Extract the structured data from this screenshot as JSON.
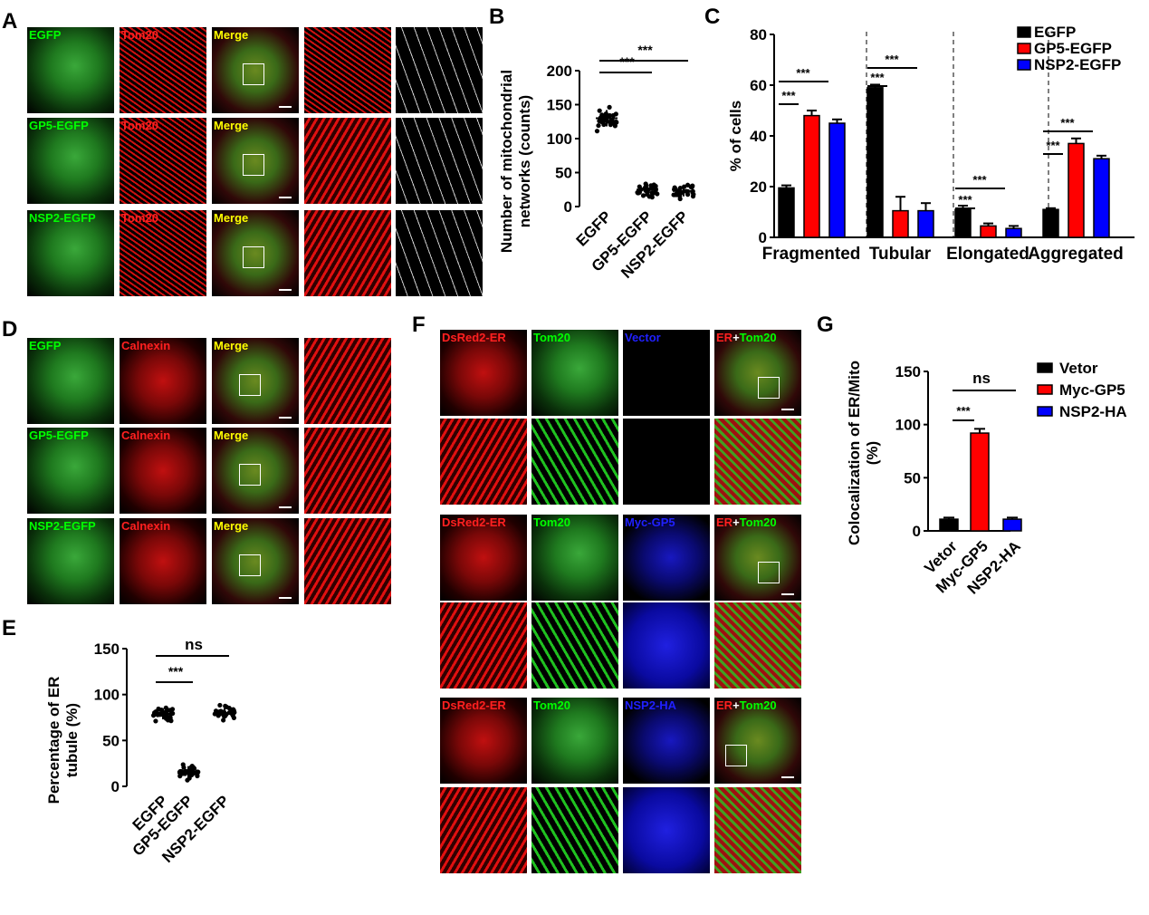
{
  "panel_letters": {
    "A": "A",
    "B": "B",
    "C": "C",
    "D": "D",
    "E": "E",
    "F": "F",
    "G": "G"
  },
  "panel_A": {
    "rows": [
      {
        "protein": "EGFP",
        "stain": "Tom20",
        "merge": "Merge"
      },
      {
        "protein": "GP5-EGFP",
        "stain": "Tom20",
        "merge": "Merge"
      },
      {
        "protein": "NSP2-EGFP",
        "stain": "Tom20",
        "merge": "Merge"
      }
    ]
  },
  "panel_D": {
    "rows": [
      {
        "protein": "EGFP",
        "stain": "Calnexin",
        "merge": "Merge"
      },
      {
        "protein": "GP5-EGFP",
        "stain": "Calnexin",
        "merge": "Merge"
      },
      {
        "protein": "NSP2-EGFP",
        "stain": "Calnexin",
        "merge": "Merge"
      }
    ]
  },
  "panel_F": {
    "rows": [
      {
        "er": "DsRed2-ER",
        "mito": "Tom20",
        "third": "Vector",
        "merge_er": "ER",
        "merge_plus": "+",
        "merge_mito": "Tom20"
      },
      {
        "er": "DsRed2-ER",
        "mito": "Tom20",
        "third": "Myc-GP5",
        "merge_er": "ER",
        "merge_plus": "+",
        "merge_mito": "Tom20"
      },
      {
        "er": "DsRed2-ER",
        "mito": "Tom20",
        "third": "NSP2-HA",
        "merge_er": "ER",
        "merge_plus": "+",
        "merge_mito": "Tom20"
      }
    ]
  },
  "colors": {
    "black": "#000000",
    "red": "#ff0000",
    "blue": "#0000ff",
    "green_label": "#00ff00",
    "red_label": "#ff2020",
    "yellow_label": "#ffff00",
    "blue_label": "#2020ff"
  },
  "chart_data": [
    {
      "id": "B",
      "type": "scatter",
      "ylabel": "Number of mitochondrial networks (counts)",
      "ylabel_lines": [
        "Number of mitochondrial",
        "networks  (counts)"
      ],
      "categories": [
        "EGFP",
        "GP5-EGFP",
        "NSP2-EGFP"
      ],
      "ylim": [
        0,
        200
      ],
      "yticks": [
        "0",
        "50",
        "100",
        "150",
        "200"
      ],
      "means": [
        130,
        25,
        23
      ],
      "sd": [
        12,
        8,
        8
      ],
      "significance": [
        {
          "from": 0,
          "to": 1,
          "label": "***"
        },
        {
          "from": 0,
          "to": 2,
          "label": "***"
        }
      ]
    },
    {
      "id": "C",
      "type": "bar",
      "ylabel": "% of cells",
      "categories": [
        "Fragmented",
        "Tubular",
        "Elongated",
        "Aggregated"
      ],
      "ylim": [
        0,
        80
      ],
      "yticks": [
        "0",
        "20",
        "40",
        "60",
        "80"
      ],
      "series": [
        {
          "name": "EGFP",
          "color": "#000000",
          "values": [
            19.5,
            59,
            11,
            11
          ],
          "errors": [
            1,
            1.2,
            1.5,
            0.5
          ]
        },
        {
          "name": "GP5-EGFP",
          "color": "#ff0000",
          "values": [
            48,
            10.5,
            4.5,
            37
          ],
          "errors": [
            2,
            5.5,
            1,
            2
          ]
        },
        {
          "name": "NSP2-EGFP",
          "color": "#0000ff",
          "values": [
            45,
            10.5,
            3.5,
            31
          ],
          "errors": [
            1.5,
            3,
            1,
            1.2
          ]
        }
      ],
      "significance_label": "***",
      "legend": "top-right"
    },
    {
      "id": "E",
      "type": "scatter",
      "ylabel": "Percentage of ER tubule (%)",
      "ylabel_lines": [
        "Percentage of ER",
        "tubule (%)"
      ],
      "categories": [
        "EGFP",
        "GP5-EGFP",
        "NSP2-EGFP"
      ],
      "ylim": [
        0,
        150
      ],
      "yticks": [
        "0",
        "50",
        "100",
        "150"
      ],
      "means": [
        79,
        16,
        80
      ],
      "sd": [
        6,
        6,
        5
      ],
      "significance": [
        {
          "from": 0,
          "to": 1,
          "label": "***"
        },
        {
          "from": 0,
          "to": 2,
          "label": "ns"
        }
      ]
    },
    {
      "id": "G",
      "type": "bar",
      "ylabel": "Colocalization of ER/Mito (%)",
      "ylabel_lines": [
        "Colocalization of ER/Mito",
        "(%)"
      ],
      "categories": [
        "Vetor",
        "Myc-GP5",
        "NSP2-HA"
      ],
      "ylim": [
        0,
        150
      ],
      "yticks": [
        "0",
        "50",
        "100",
        "150"
      ],
      "values": [
        11,
        92,
        11
      ],
      "errors": [
        1.5,
        4,
        1.5
      ],
      "colors": [
        "#000000",
        "#ff0000",
        "#0000ff"
      ],
      "legend_entries": [
        "Vetor",
        "Myc-GP5",
        "NSP2-HA"
      ],
      "significance": [
        {
          "from": 0,
          "to": 1,
          "label": "***"
        },
        {
          "from": 0,
          "to": 2,
          "label": "ns"
        }
      ],
      "legend": "right"
    }
  ]
}
